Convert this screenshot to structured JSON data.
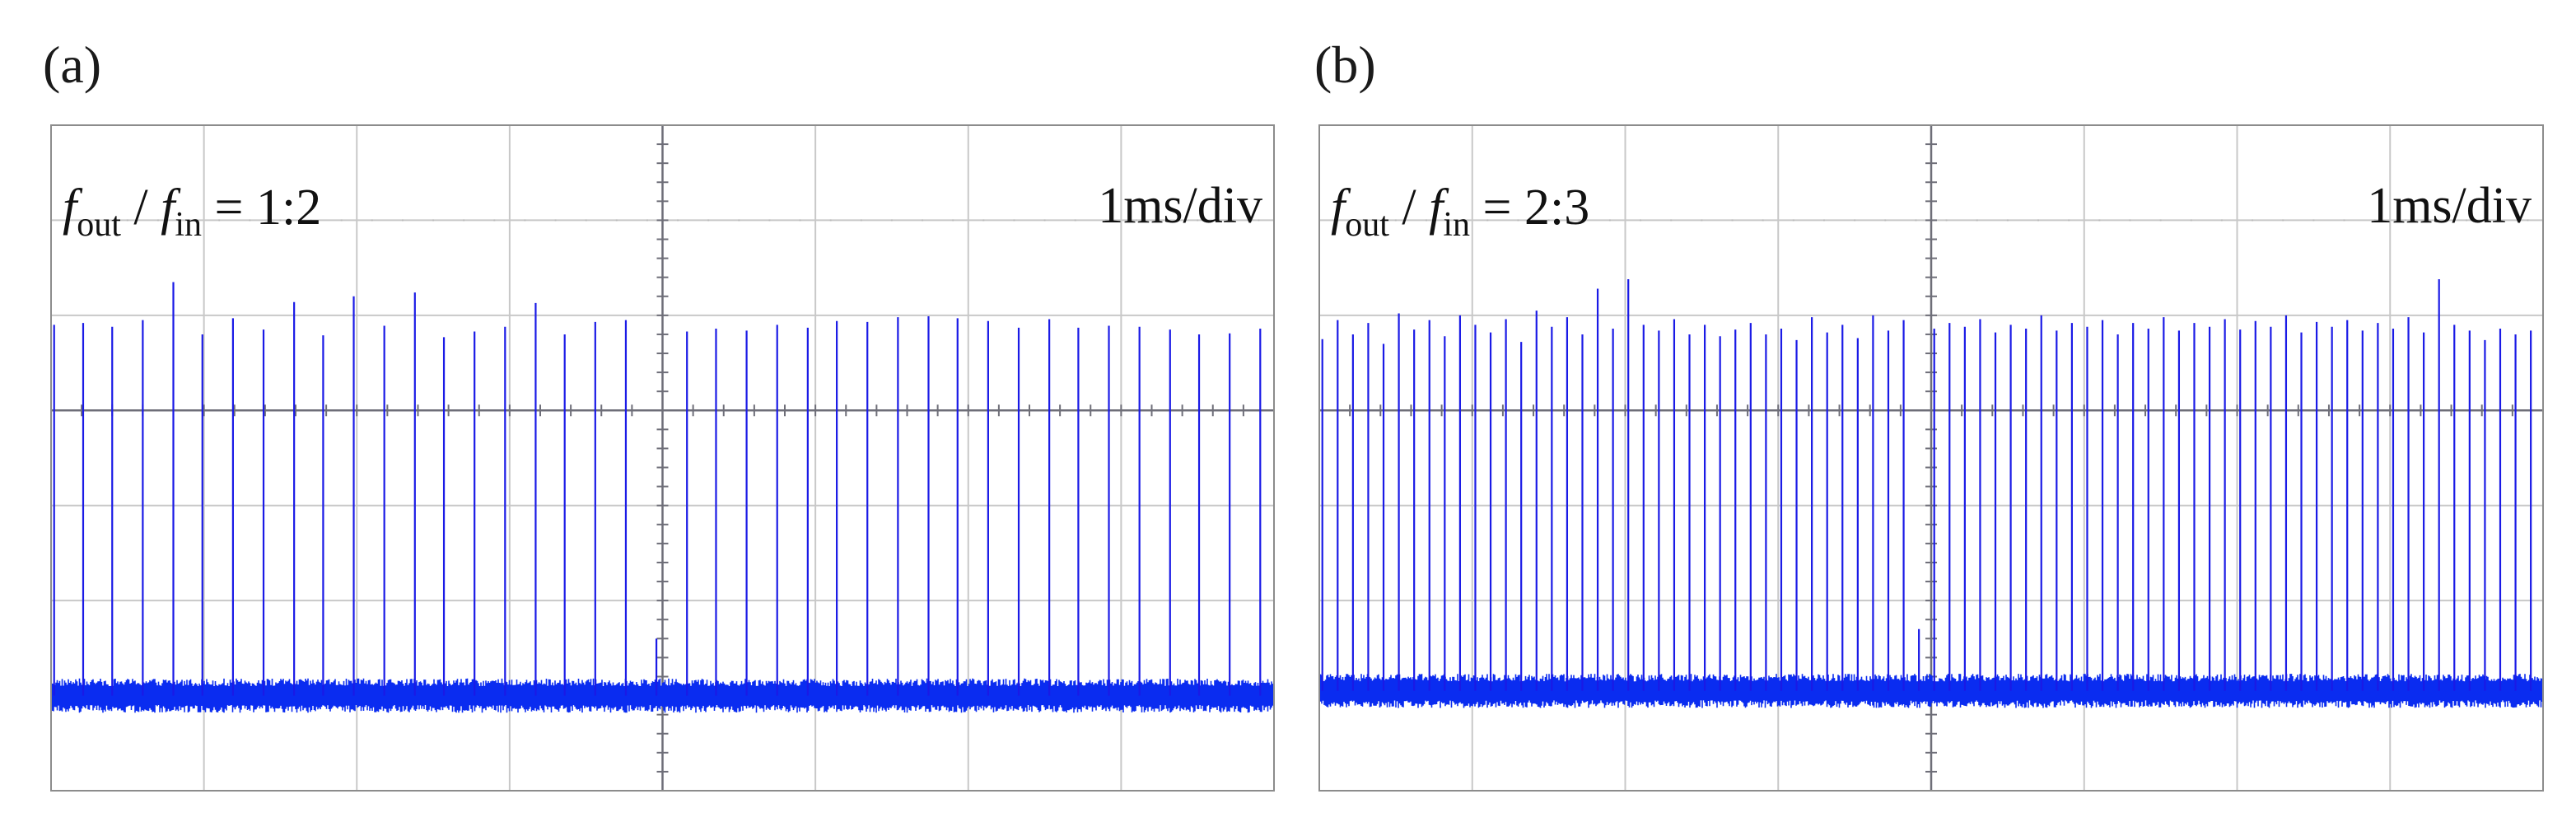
{
  "chart_data": [
    {
      "panel": "(a)",
      "type": "line",
      "title": "",
      "ratio": "1:2",
      "timebase": "1ms/div",
      "xlabel": "",
      "ylabel": "",
      "grid": true,
      "x_divisions": 8,
      "y_divisions": 7,
      "xlim": [
        0,
        8
      ],
      "ylim": [
        0,
        7
      ],
      "baseline_level": 1.0,
      "baseline_noise": 0.18,
      "colors": {
        "trace": "#1a1ae6",
        "baseline": "#0a2cf0",
        "grid": "#c8c8c8",
        "axis": "#6e6e78"
      },
      "series": [
        {
          "values_description": "",
          "x": [
            0.02,
            0.21,
            0.4,
            0.6,
            0.8,
            0.99,
            1.19,
            1.39,
            1.59,
            1.78,
            1.98,
            2.18,
            2.38,
            2.57,
            2.77,
            2.97,
            3.17,
            3.36,
            3.56,
            3.76,
            3.96,
            4.16,
            4.35,
            4.55,
            4.75,
            4.95,
            5.14,
            5.34,
            5.54,
            5.74,
            5.93,
            6.13,
            6.33,
            6.53,
            6.72,
            6.92,
            7.12,
            7.32,
            7.51,
            7.71,
            7.91
          ],
          "y": [
            4.9,
            4.92,
            4.88,
            4.95,
            5.35,
            4.8,
            4.97,
            4.85,
            5.14,
            4.79,
            5.2,
            4.89,
            5.24,
            4.77,
            4.83,
            4.88,
            5.13,
            4.8,
            4.93,
            4.95,
            1.6,
            4.83,
            4.86,
            4.84,
            4.9,
            4.87,
            4.94,
            4.93,
            4.98,
            4.99,
            4.97,
            4.94,
            4.87,
            4.96,
            4.87,
            4.89,
            4.88,
            4.85,
            4.8,
            4.81,
            4.86
          ]
        }
      ]
    },
    {
      "panel": "(b)",
      "type": "line",
      "title": "",
      "ratio": "2:3",
      "timebase": "1ms/div",
      "xlabel": "",
      "ylabel": "",
      "grid": true,
      "x_divisions": 8,
      "y_divisions": 7,
      "xlim": [
        0,
        8
      ],
      "ylim": [
        0,
        7
      ],
      "baseline_level": 1.05,
      "baseline_noise": 0.18,
      "colors": {
        "trace": "#1a1ae6",
        "baseline": "#0a2cf0",
        "grid": "#c8c8c8",
        "axis": "#6e6e78"
      },
      "series": [
        {
          "values_description": "",
          "x": [
            0.02,
            0.12,
            0.22,
            0.32,
            0.42,
            0.52,
            0.62,
            0.72,
            0.82,
            0.92,
            1.02,
            1.12,
            1.22,
            1.32,
            1.42,
            1.52,
            1.62,
            1.72,
            1.82,
            1.92,
            2.02,
            2.12,
            2.22,
            2.32,
            2.42,
            2.52,
            2.62,
            2.72,
            2.82,
            2.92,
            3.02,
            3.12,
            3.22,
            3.32,
            3.42,
            3.52,
            3.62,
            3.72,
            3.82,
            3.92,
            4.02,
            4.12,
            4.22,
            4.32,
            4.42,
            4.52,
            4.62,
            4.72,
            4.82,
            4.92,
            5.02,
            5.12,
            5.22,
            5.32,
            5.42,
            5.52,
            5.62,
            5.72,
            5.82,
            5.92,
            6.02,
            6.12,
            6.22,
            6.32,
            6.42,
            6.52,
            6.62,
            6.72,
            6.82,
            6.92,
            7.02,
            7.12,
            7.22,
            7.32,
            7.42,
            7.52,
            7.62,
            7.72,
            7.82,
            7.92
          ],
          "y": [
            4.75,
            4.95,
            4.8,
            4.92,
            4.7,
            5.02,
            4.85,
            4.95,
            4.78,
            5.0,
            4.9,
            4.82,
            4.96,
            4.72,
            5.05,
            4.88,
            4.98,
            4.8,
            5.28,
            4.86,
            5.38,
            4.9,
            4.84,
            4.96,
            4.8,
            4.9,
            4.78,
            4.85,
            4.92,
            4.8,
            4.86,
            4.74,
            4.98,
            4.82,
            4.9,
            4.76,
            5.0,
            4.84,
            4.95,
            1.7,
            4.86,
            4.92,
            4.88,
            4.96,
            4.82,
            4.9,
            4.86,
            5.0,
            4.84,
            4.92,
            4.88,
            4.95,
            4.8,
            4.92,
            4.86,
            4.98,
            4.84,
            4.92,
            4.88,
            4.96,
            4.85,
            4.94,
            4.88,
            5.0,
            4.82,
            4.93,
            4.88,
            4.95,
            4.84,
            4.92,
            4.86,
            4.98,
            4.82,
            5.38,
            4.9,
            4.84,
            4.74,
            4.86,
            4.8,
            4.84
          ]
        }
      ]
    }
  ]
}
